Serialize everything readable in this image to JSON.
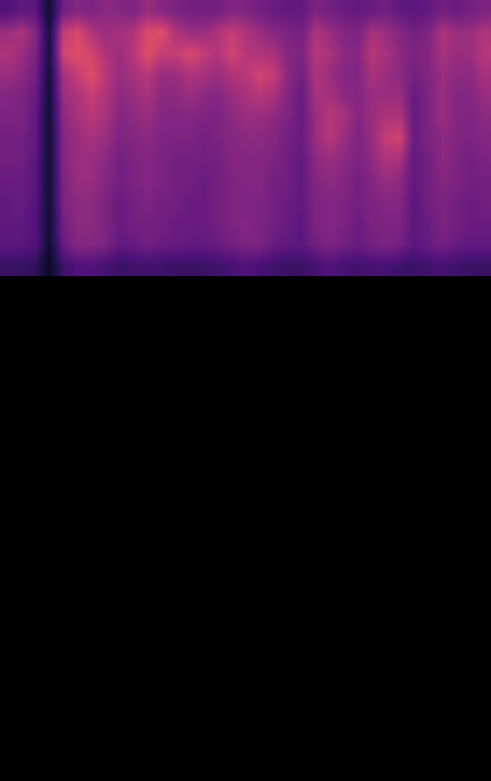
{
  "chart_data": {
    "type": "heatmap",
    "x": [
      0.5,
      1.5,
      2.5,
      3.5,
      4.5,
      5.5,
      6.5,
      7.5,
      8.5,
      9.5,
      10.5,
      11.5,
      12.5,
      13.5,
      14.5,
      15.5,
      16.5,
      17.5,
      18.5,
      19.5,
      20.5,
      21.5,
      22.5,
      23.5,
      24.5,
      25.5,
      26.5,
      27.5,
      28.5,
      29.5,
      30.5,
      31.5,
      32.5,
      33.5,
      34.5
    ],
    "y": [
      0.5,
      1.5,
      2.5,
      3.5,
      4.5,
      5.5,
      6.5,
      7.5,
      8.5,
      9.5,
      10.5,
      11.5,
      12.5
    ],
    "xlim": [
      0,
      35
    ],
    "ylim": [
      0,
      36.8
    ],
    "zlim": [
      0,
      100
    ],
    "tick_labels": false,
    "grid": false,
    "cells": [
      [
        35,
        40,
        38,
        15,
        45,
        50,
        48,
        52,
        50,
        48,
        55,
        50,
        48,
        45,
        45,
        45,
        50,
        48,
        45,
        42,
        40,
        40,
        48,
        45,
        42,
        40,
        42,
        45,
        40,
        38,
        40,
        45,
        42,
        45,
        48
      ],
      [
        55,
        60,
        50,
        18,
        65,
        70,
        60,
        55,
        58,
        60,
        70,
        72,
        60,
        55,
        55,
        60,
        65,
        60,
        55,
        50,
        48,
        45,
        60,
        55,
        50,
        48,
        58,
        55,
        50,
        45,
        48,
        60,
        55,
        55,
        60
      ],
      [
        60,
        55,
        48,
        18,
        68,
        72,
        68,
        60,
        55,
        62,
        72,
        65,
        65,
        70,
        65,
        60,
        68,
        62,
        60,
        58,
        50,
        48,
        62,
        58,
        52,
        50,
        62,
        58,
        52,
        48,
        50,
        58,
        55,
        55,
        62
      ],
      [
        55,
        52,
        45,
        17,
        58,
        65,
        72,
        62,
        55,
        58,
        62,
        55,
        55,
        60,
        58,
        55,
        60,
        62,
        68,
        65,
        52,
        45,
        60,
        55,
        50,
        50,
        58,
        55,
        52,
        45,
        50,
        55,
        52,
        52,
        58
      ],
      [
        50,
        48,
        42,
        16,
        55,
        60,
        65,
        60,
        52,
        55,
        58,
        52,
        52,
        55,
        52,
        50,
        55,
        58,
        62,
        58,
        50,
        42,
        58,
        58,
        52,
        50,
        55,
        55,
        55,
        42,
        48,
        55,
        50,
        50,
        55
      ],
      [
        48,
        48,
        40,
        15,
        52,
        58,
        62,
        58,
        50,
        52,
        55,
        50,
        50,
        50,
        48,
        48,
        52,
        55,
        55,
        52,
        48,
        42,
        55,
        62,
        58,
        50,
        55,
        60,
        60,
        42,
        48,
        55,
        50,
        48,
        52
      ],
      [
        45,
        45,
        40,
        15,
        50,
        55,
        58,
        55,
        48,
        50,
        52,
        48,
        48,
        48,
        45,
        48,
        50,
        52,
        52,
        50,
        45,
        42,
        55,
        62,
        55,
        48,
        55,
        65,
        68,
        42,
        48,
        52,
        50,
        48,
        50
      ],
      [
        45,
        45,
        38,
        15,
        50,
        55,
        55,
        52,
        45,
        48,
        50,
        48,
        45,
        45,
        45,
        45,
        50,
        50,
        50,
        48,
        45,
        40,
        52,
        55,
        52,
        48,
        52,
        60,
        58,
        40,
        45,
        52,
        48,
        45,
        48
      ],
      [
        42,
        42,
        38,
        15,
        48,
        55,
        55,
        50,
        45,
        48,
        50,
        48,
        45,
        45,
        42,
        45,
        48,
        50,
        50,
        45,
        45,
        40,
        50,
        52,
        50,
        45,
        50,
        55,
        52,
        40,
        45,
        50,
        48,
        45,
        45
      ],
      [
        40,
        42,
        36,
        15,
        48,
        52,
        52,
        48,
        42,
        45,
        48,
        45,
        45,
        42,
        42,
        45,
        48,
        48,
        48,
        45,
        42,
        40,
        48,
        50,
        48,
        45,
        48,
        50,
        50,
        38,
        45,
        48,
        45,
        42,
        45
      ],
      [
        40,
        40,
        35,
        15,
        45,
        52,
        52,
        48,
        42,
        45,
        45,
        45,
        42,
        42,
        42,
        45,
        48,
        50,
        48,
        45,
        42,
        38,
        48,
        50,
        48,
        42,
        48,
        48,
        48,
        38,
        42,
        48,
        45,
        42,
        42
      ],
      [
        38,
        38,
        35,
        14,
        42,
        50,
        50,
        48,
        40,
        42,
        45,
        42,
        42,
        40,
        40,
        42,
        45,
        48,
        48,
        42,
        40,
        38,
        45,
        48,
        45,
        42,
        45,
        48,
        45,
        38,
        42,
        45,
        42,
        40,
        40
      ],
      [
        28,
        28,
        25,
        10,
        30,
        35,
        35,
        32,
        28,
        30,
        30,
        30,
        28,
        28,
        28,
        30,
        32,
        35,
        32,
        30,
        28,
        28,
        32,
        35,
        32,
        30,
        32,
        32,
        30,
        28,
        30,
        32,
        30,
        28,
        28
      ]
    ]
  }
}
